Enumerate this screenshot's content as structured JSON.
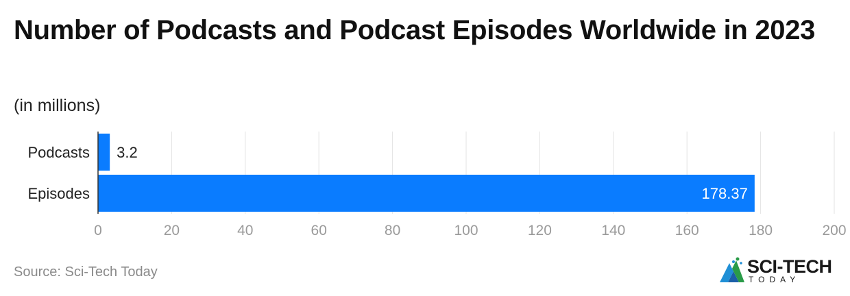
{
  "header": {
    "title": "Number of Podcasts and Podcast Episodes Worldwide in 2023",
    "subtitle": "(in millions)"
  },
  "footer": {
    "source": "Source: Sci-Tech Today",
    "logo_text": "SCI-TECH",
    "logo_sub": "TODAY"
  },
  "colors": {
    "bar": "#0a7cff",
    "grid": "#e3e3e3",
    "tick": "#9a9a9a"
  },
  "chart_data": {
    "type": "bar",
    "orientation": "horizontal",
    "categories": [
      "Podcasts",
      "Episodes"
    ],
    "values": [
      3.2,
      178.37
    ],
    "value_labels": [
      "3.2",
      "178.37"
    ],
    "xlim": [
      0,
      200
    ],
    "x_ticks": [
      0,
      20,
      40,
      60,
      80,
      100,
      120,
      140,
      160,
      180,
      200
    ],
    "grid": true,
    "legend": "none"
  }
}
